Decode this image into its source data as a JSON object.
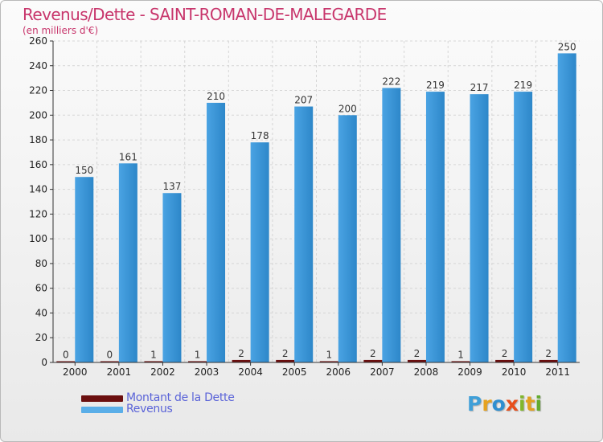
{
  "chart_data": {
    "type": "bar",
    "title": "Revenus/Dette - SAINT-ROMAN-DE-MALEGARDE",
    "subtitle": "(en milliers d'€)",
    "categories": [
      "2000",
      "2001",
      "2002",
      "2003",
      "2004",
      "2005",
      "2006",
      "2007",
      "2008",
      "2009",
      "2010",
      "2011"
    ],
    "series": [
      {
        "name": "Montant de la Dette",
        "color": "#6b0f0f",
        "values": [
          0,
          0,
          1,
          1,
          2,
          2,
          1,
          2,
          2,
          1,
          2,
          2
        ]
      },
      {
        "name": "Revenus",
        "color": "#5aaee8",
        "values": [
          150,
          161,
          137,
          210,
          178,
          207,
          200,
          222,
          219,
          217,
          219,
          250
        ]
      }
    ],
    "ylim": [
      0,
      260
    ],
    "yticks": [
      0,
      20,
      40,
      60,
      80,
      100,
      120,
      140,
      160,
      180,
      200,
      220,
      240,
      260
    ],
    "grid": true,
    "legend": "bottom-left"
  },
  "logo": {
    "letters": [
      "P",
      "r",
      "o",
      "x",
      "i",
      "t",
      "i"
    ],
    "colors": [
      "#3f9fd8",
      "#e6a21f",
      "#2f8fd0",
      "#e84f1c",
      "#82b72c",
      "#e3a11f",
      "#62ab2d"
    ]
  }
}
